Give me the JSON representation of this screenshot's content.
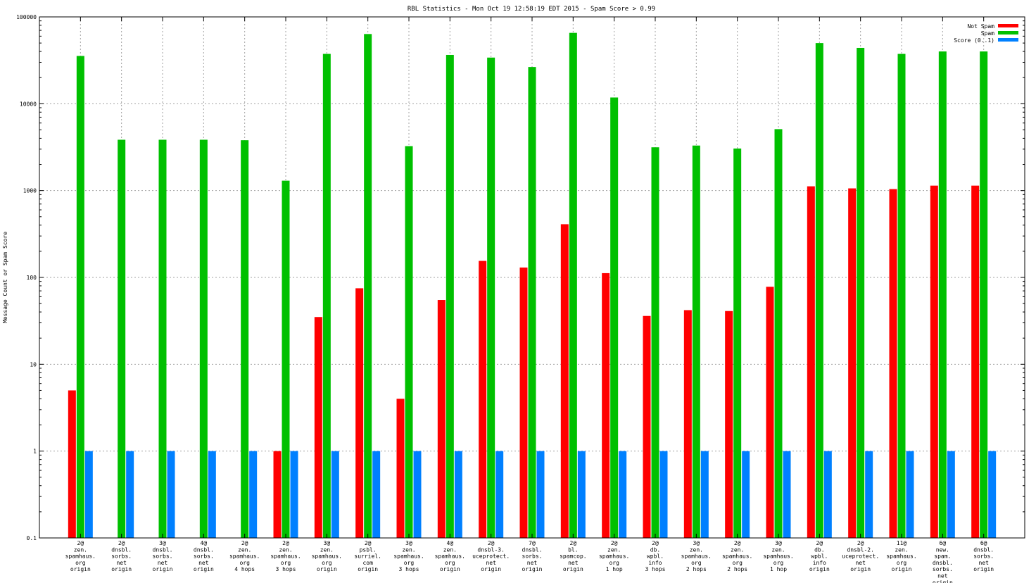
{
  "chart_data": {
    "type": "bar",
    "title": "RBL Statistics - Mon Oct 19 12:58:19 EDT 2015 - Spam Score > 0.99",
    "xlabel": "",
    "ylabel": "Message Count or Spam Score",
    "yscale": "log",
    "ylim": [
      0.1,
      100000
    ],
    "y_ticks": [
      "0.1",
      "1",
      "10",
      "100",
      "1000",
      "10000",
      "100000"
    ],
    "grid": true,
    "legend_position": "top-right",
    "categories": [
      [
        "2@",
        "zen.",
        "spamhaus.",
        "org",
        "origin"
      ],
      [
        "2@",
        "dnsbl.",
        "sorbs.",
        "net",
        "origin"
      ],
      [
        "3@",
        "dnsbl.",
        "sorbs.",
        "net",
        "origin"
      ],
      [
        "4@",
        "dnsbl.",
        "sorbs.",
        "net",
        "origin"
      ],
      [
        "2@",
        "zen.",
        "spamhaus.",
        "org",
        "4 hops"
      ],
      [
        "2@",
        "zen.",
        "spamhaus.",
        "org",
        "3 hops"
      ],
      [
        "3@",
        "zen.",
        "spamhaus.",
        "org",
        "origin"
      ],
      [
        "2@",
        "psbl.",
        "surriel.",
        "com",
        "origin"
      ],
      [
        "3@",
        "zen.",
        "spamhaus.",
        "org",
        "3 hops"
      ],
      [
        "4@",
        "zen.",
        "spamhaus.",
        "org",
        "origin"
      ],
      [
        "2@",
        "dnsbl-3.",
        "uceprotect.",
        "net",
        "origin"
      ],
      [
        "7@",
        "dnsbl.",
        "sorbs.",
        "net",
        "origin"
      ],
      [
        "2@",
        "bl.",
        "spamcop.",
        "net",
        "origin"
      ],
      [
        "2@",
        "zen.",
        "spamhaus.",
        "org",
        "1 hop"
      ],
      [
        "2@",
        "db.",
        "wpbl.",
        "info",
        "3 hops"
      ],
      [
        "3@",
        "zen.",
        "spamhaus.",
        "org",
        "2 hops"
      ],
      [
        "2@",
        "zen.",
        "spamhaus.",
        "org",
        "2 hops"
      ],
      [
        "3@",
        "zen.",
        "spamhaus.",
        "org",
        "1 hop"
      ],
      [
        "2@",
        "db.",
        "wpbl.",
        "info",
        "origin"
      ],
      [
        "2@",
        "dnsbl-2.",
        "uceprotect.",
        "net",
        "origin"
      ],
      [
        "11@",
        "zen.",
        "spamhaus.",
        "org",
        "origin"
      ],
      [
        "6@",
        "new.",
        "spam.",
        "dnsbl.",
        "sorbs.",
        "net",
        "origin"
      ],
      [
        "6@",
        "dnsbl.",
        "sorbs.",
        "net",
        "origin"
      ]
    ],
    "series": [
      {
        "name": "Not Spam",
        "color": "#ff0000",
        "values": [
          5,
          null,
          null,
          null,
          null,
          1,
          35,
          75,
          4,
          55,
          155,
          130,
          410,
          112,
          36,
          42,
          41,
          78,
          1120,
          1060,
          1040,
          1140,
          1140
        ]
      },
      {
        "name": "Spam",
        "color": "#00c000",
        "values": [
          35500,
          3850,
          3850,
          3850,
          3800,
          1300,
          37500,
          63500,
          3250,
          36500,
          34000,
          26500,
          65500,
          11800,
          3150,
          3300,
          3050,
          5100,
          50000,
          44000,
          37500,
          40000,
          40000
        ]
      },
      {
        "name": "Score (0..1)",
        "color": "#0080ff",
        "values": [
          1,
          1,
          1,
          1,
          1,
          1,
          1,
          1,
          1,
          1,
          1,
          1,
          1,
          1,
          1,
          1,
          1,
          1,
          1,
          1,
          1,
          1,
          1
        ]
      }
    ]
  }
}
